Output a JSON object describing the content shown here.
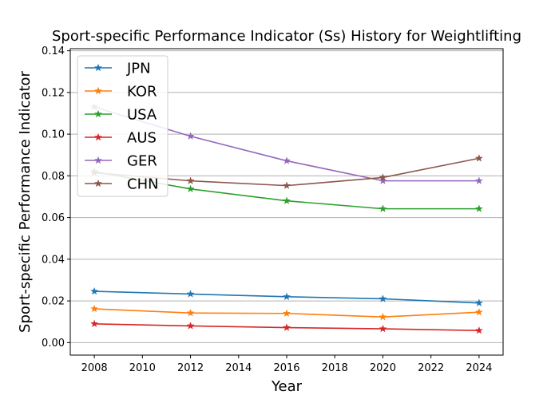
{
  "chart_data": {
    "type": "line",
    "title": "Sport-specific Performance Indicator (Ss) History for Weightlifting",
    "xlabel": "Year",
    "ylabel": "Sport-specific Performance Indicator",
    "x": [
      2008,
      2012,
      2016,
      2020,
      2024
    ],
    "xlim": [
      2007,
      2025
    ],
    "ylim": [
      -0.006,
      0.141
    ],
    "xticks": [
      "2008",
      "2010",
      "2012",
      "2014",
      "2016",
      "2018",
      "2020",
      "2022",
      "2024"
    ],
    "yticks": [
      "0.00",
      "0.02",
      "0.04",
      "0.06",
      "0.08",
      "0.10",
      "0.12",
      "0.14"
    ],
    "grid": "horizontal",
    "legend_position": "top-left",
    "marker": "star",
    "series": [
      {
        "name": "JPN",
        "color": "#1f77b4",
        "values": [
          0.0246,
          0.0233,
          0.022,
          0.021,
          0.019
        ]
      },
      {
        "name": "KOR",
        "color": "#ff7f0e",
        "values": [
          0.0162,
          0.0142,
          0.014,
          0.0123,
          0.0146
        ]
      },
      {
        "name": "USA",
        "color": "#2ca02c",
        "values": [
          0.082,
          0.0737,
          0.068,
          0.0642,
          0.0642
        ]
      },
      {
        "name": "AUS",
        "color": "#d62728",
        "values": [
          0.009,
          0.008,
          0.0072,
          0.0066,
          0.0058
        ]
      },
      {
        "name": "GER",
        "color": "#9467bd",
        "values": [
          0.113,
          0.099,
          0.0872,
          0.0776,
          0.0776
        ]
      },
      {
        "name": "CHN",
        "color": "#8c564b",
        "values": [
          0.0815,
          0.0776,
          0.0753,
          0.0792,
          0.0884
        ]
      }
    ]
  }
}
